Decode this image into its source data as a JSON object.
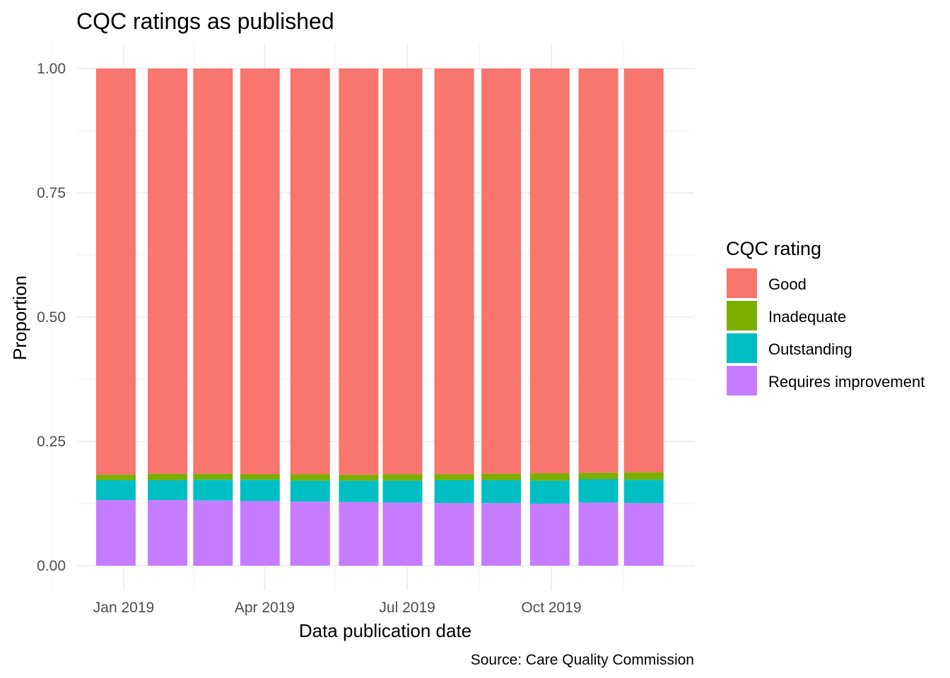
{
  "chart_data": {
    "type": "bar",
    "stacked": true,
    "title": "CQC ratings as published",
    "xlabel": "Data publication date",
    "ylabel": "Proportion",
    "caption": "Source: Care Quality Commission",
    "x": [
      "2018-12-27",
      "2019-01-29",
      "2019-02-27",
      "2019-03-29",
      "2019-04-30",
      "2019-05-31",
      "2019-06-28",
      "2019-07-31",
      "2019-08-30",
      "2019-09-30",
      "2019-10-31",
      "2019-11-29"
    ],
    "x_ticks": [
      "2019-01-01",
      "2019-04-01",
      "2019-07-01",
      "2019-10-01"
    ],
    "x_tick_labels": [
      "Jan 2019",
      "Apr 2019",
      "Jul 2019",
      "Oct 2019"
    ],
    "ylim": [
      0,
      1
    ],
    "y_ticks": [
      0,
      0.25,
      0.5,
      0.75,
      1
    ],
    "y_tick_labels": [
      "0.00",
      "0.25",
      "0.50",
      "0.75",
      "1.00"
    ],
    "grid": true,
    "legend": {
      "title": "CQC rating",
      "position": "right"
    },
    "stack_order": [
      "Requires improvement",
      "Outstanding",
      "Inadequate",
      "Good"
    ],
    "series": [
      {
        "name": "Good",
        "color": "#F8766D",
        "values": [
          0.817,
          0.815,
          0.815,
          0.816,
          0.816,
          0.817,
          0.816,
          0.816,
          0.815,
          0.814,
          0.813,
          0.812
        ]
      },
      {
        "name": "Inadequate",
        "color": "#7CAE00",
        "values": [
          0.011,
          0.013,
          0.012,
          0.011,
          0.013,
          0.012,
          0.013,
          0.012,
          0.013,
          0.015,
          0.013,
          0.015
        ]
      },
      {
        "name": "Outstanding",
        "color": "#00BFC4",
        "values": [
          0.04,
          0.04,
          0.042,
          0.043,
          0.042,
          0.043,
          0.044,
          0.046,
          0.046,
          0.046,
          0.047,
          0.047
        ]
      },
      {
        "name": "Requires improvement",
        "color": "#C77CFF",
        "values": [
          0.132,
          0.132,
          0.131,
          0.13,
          0.129,
          0.128,
          0.127,
          0.126,
          0.126,
          0.125,
          0.127,
          0.126
        ]
      }
    ]
  }
}
